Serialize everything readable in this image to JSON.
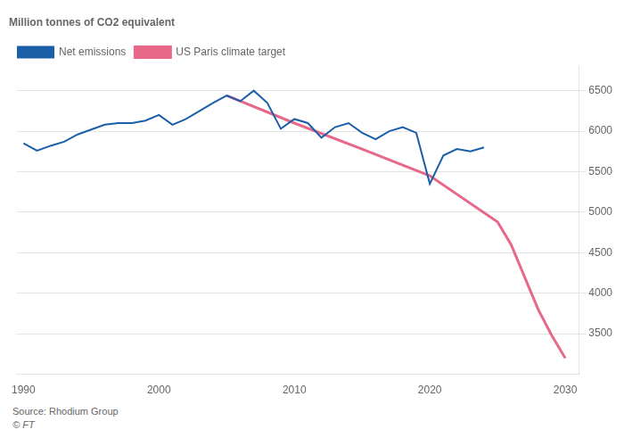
{
  "chart_data": {
    "type": "line",
    "title": "Million tonnes of CO2 equivalent",
    "series": [
      {
        "name": "Net emissions",
        "color": "#1a5fa8",
        "x": [
          1990,
          1991,
          1992,
          1993,
          1994,
          1995,
          1996,
          1997,
          1998,
          1999,
          2000,
          2001,
          2002,
          2003,
          2004,
          2005,
          2006,
          2007,
          2008,
          2009,
          2010,
          2011,
          2012,
          2013,
          2014,
          2015,
          2016,
          2017,
          2018,
          2019,
          2020,
          2021,
          2022,
          2023,
          2024
        ],
        "values": [
          5850,
          5760,
          5820,
          5870,
          5960,
          6020,
          6080,
          6100,
          6100,
          6130,
          6200,
          6080,
          6150,
          6250,
          6350,
          6440,
          6370,
          6500,
          6350,
          6030,
          6150,
          6100,
          5920,
          6050,
          6100,
          5980,
          5900,
          6000,
          6050,
          5980,
          5350,
          5700,
          5780,
          5750,
          5800
        ]
      },
      {
        "name": "US Paris climate target",
        "color": "#e8688a",
        "x": [
          2005,
          2010,
          2015,
          2020,
          2025,
          2026,
          2027,
          2028,
          2029,
          2030
        ],
        "values": [
          6440,
          6100,
          5780,
          5450,
          4880,
          4600,
          4200,
          3800,
          3480,
          3200
        ]
      }
    ],
    "xlim": [
      1989.5,
      2031
    ],
    "xticks": [
      1990,
      2000,
      2010,
      2020,
      2030
    ],
    "ylim": [
      3000,
      6800
    ],
    "yticks": [
      3500,
      4000,
      4500,
      5000,
      5500,
      6000,
      6500
    ],
    "grid": true,
    "annotations": [
      "Source: Rhodium Group",
      "© FT"
    ]
  }
}
